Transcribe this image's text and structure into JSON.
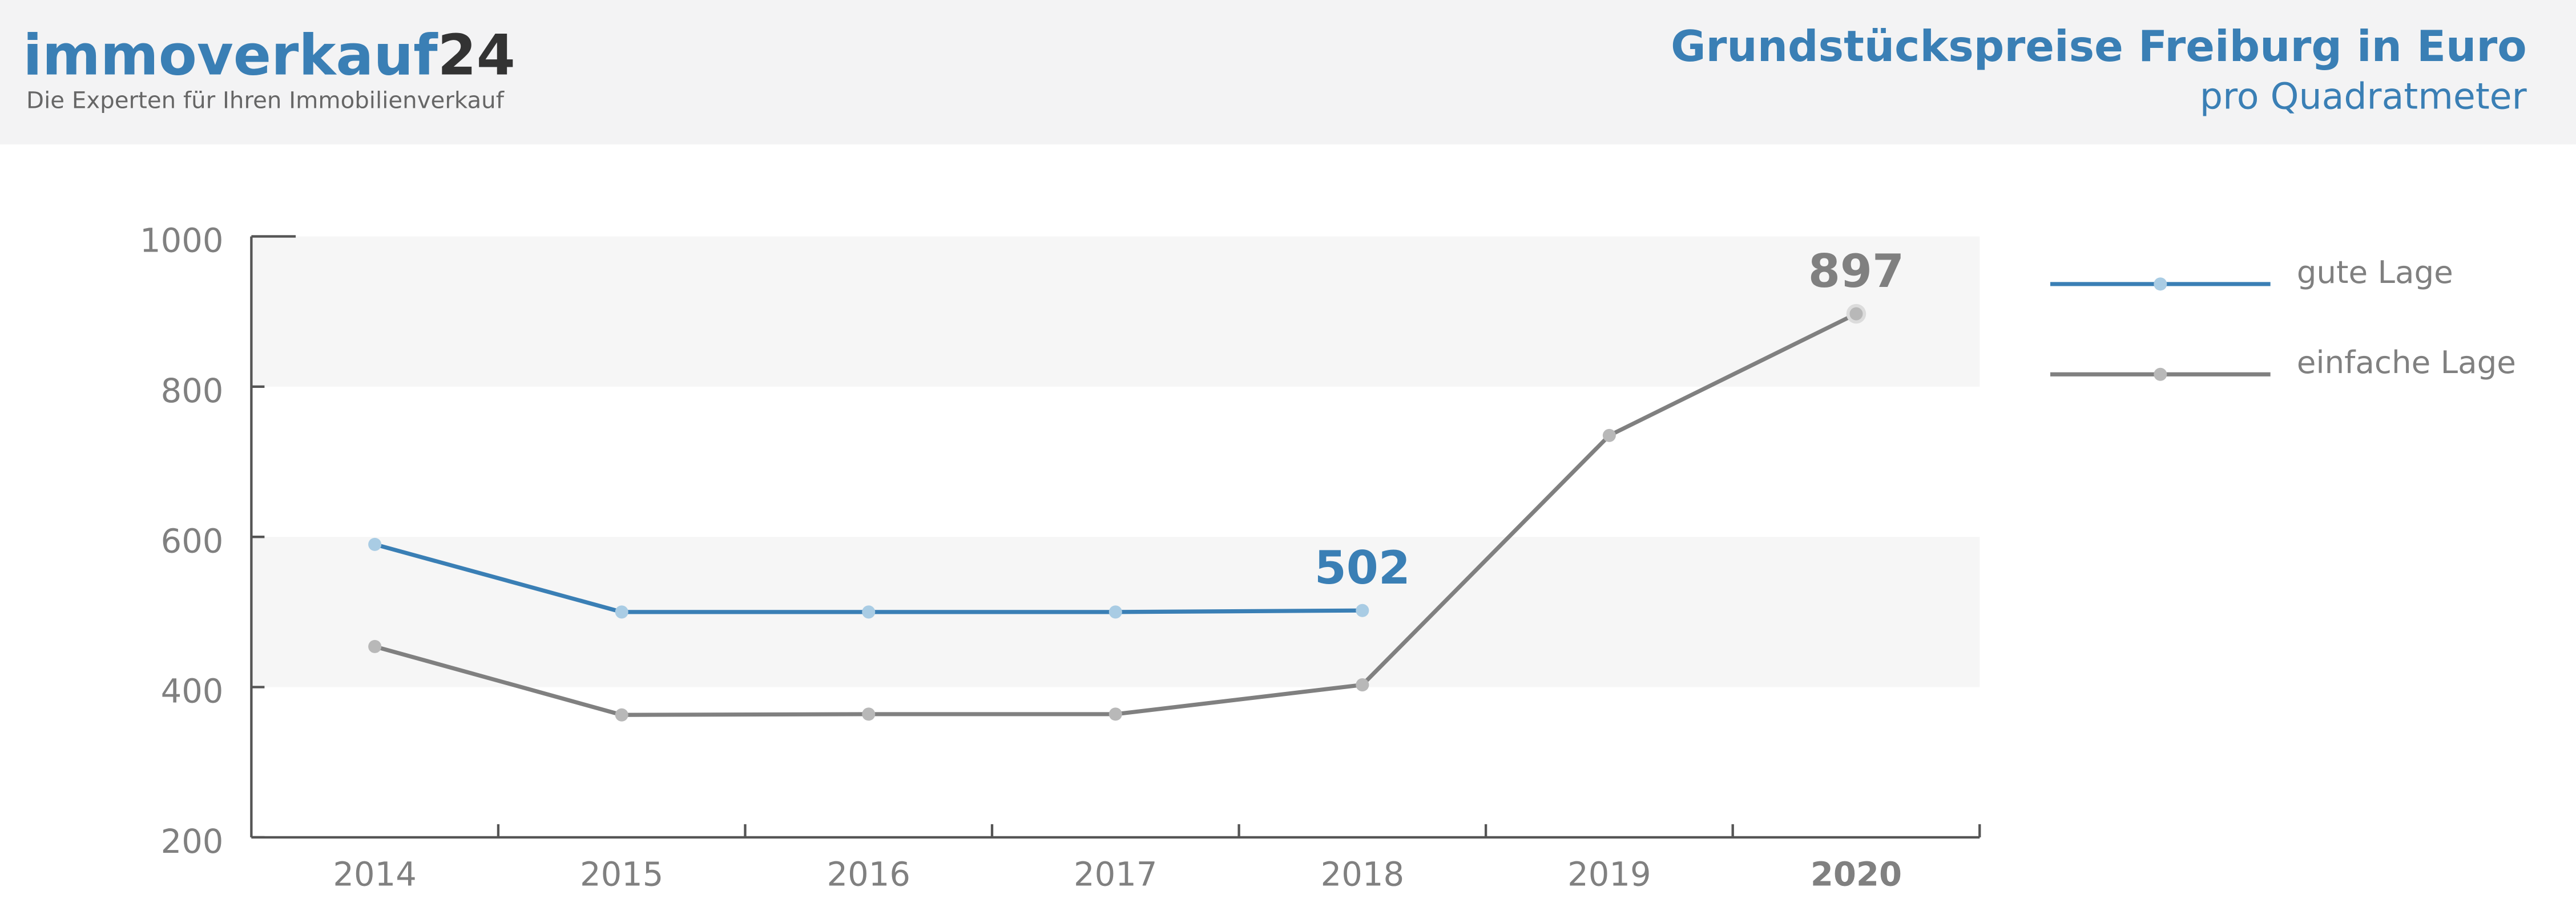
{
  "logo": {
    "name": "immoverkauf",
    "number": "24",
    "tagline": "Die Experten für Ihren Immobilienverkauf"
  },
  "chart_data": {
    "type": "line",
    "title": "Grundstückspreise Freiburg in Euro",
    "subtitle": "pro Quadratmeter",
    "categories": [
      "2014",
      "2015",
      "2016",
      "2017",
      "2018",
      "2019",
      "2020"
    ],
    "series": [
      {
        "name": "gute Lage",
        "color": "#3a7fb5",
        "marker_color": "#a9cce4",
        "values": [
          590,
          500,
          500,
          500,
          502,
          null,
          null
        ]
      },
      {
        "name": "einfache Lage",
        "color": "#808080",
        "marker_color": "#b8b8b8",
        "values": [
          454,
          363,
          364,
          364,
          403,
          735,
          897
        ]
      }
    ],
    "ylim": [
      200,
      1000
    ],
    "yticks": [
      200,
      400,
      600,
      800,
      1000
    ],
    "legend": "right"
  }
}
